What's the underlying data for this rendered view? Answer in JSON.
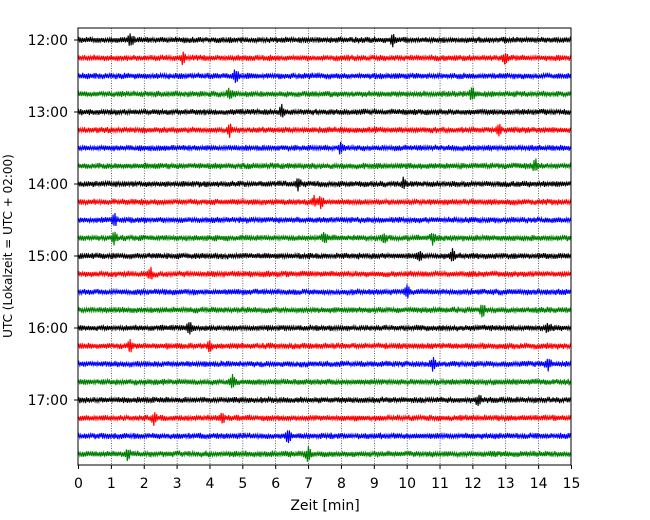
{
  "chart_data": {
    "type": "line",
    "title": "",
    "xlabel": "Zeit  [min]",
    "ylabel": "UTC (Lokalzeit = UTC + 02:00)",
    "xlim": [
      0,
      15
    ],
    "x_ticks": [
      "0",
      "1",
      "2",
      "3",
      "4",
      "5",
      "6",
      "7",
      "8",
      "9",
      "10",
      "11",
      "12",
      "13",
      "14",
      "15"
    ],
    "x_tick_values": [
      0,
      1,
      2,
      3,
      4,
      5,
      6,
      7,
      8,
      9,
      10,
      11,
      12,
      13,
      14,
      15
    ],
    "y_ticks": [
      "12:00",
      "13:00",
      "14:00",
      "15:00",
      "16:00",
      "17:00"
    ],
    "vertical_grid": "dotted at every minute",
    "trace_interval_minutes": 15,
    "trace_color_cycle": [
      "#000000",
      "#ff0000",
      "#0000ff",
      "#008000"
    ],
    "traces": [
      {
        "start": "12:00",
        "color": "#000000",
        "events_min": [
          1.6,
          9.6
        ]
      },
      {
        "start": "12:15",
        "color": "#ff0000",
        "events_min": [
          3.2,
          13.0
        ]
      },
      {
        "start": "12:30",
        "color": "#0000ff",
        "events_min": [
          4.8
        ]
      },
      {
        "start": "12:45",
        "color": "#008000",
        "events_min": [
          4.6,
          12.0
        ]
      },
      {
        "start": "13:00",
        "color": "#000000",
        "events_min": [
          6.2
        ]
      },
      {
        "start": "13:15",
        "color": "#ff0000",
        "events_min": [
          4.6,
          12.8
        ]
      },
      {
        "start": "13:30",
        "color": "#0000ff",
        "events_min": [
          8.0
        ]
      },
      {
        "start": "13:45",
        "color": "#008000",
        "events_min": [
          13.9
        ]
      },
      {
        "start": "14:00",
        "color": "#000000",
        "events_min": [
          6.7,
          9.9
        ]
      },
      {
        "start": "14:15",
        "color": "#ff0000",
        "events_min": [
          7.2,
          7.4
        ]
      },
      {
        "start": "14:30",
        "color": "#0000ff",
        "events_min": [
          1.1
        ]
      },
      {
        "start": "14:45",
        "color": "#008000",
        "events_min": [
          1.1,
          7.5,
          9.3,
          10.8
        ]
      },
      {
        "start": "15:00",
        "color": "#000000",
        "events_min": [
          10.4,
          11.4
        ]
      },
      {
        "start": "15:15",
        "color": "#ff0000",
        "events_min": [
          2.2
        ]
      },
      {
        "start": "15:30",
        "color": "#0000ff",
        "events_min": [
          10.0
        ]
      },
      {
        "start": "15:45",
        "color": "#008000",
        "events_min": [
          12.3
        ]
      },
      {
        "start": "16:00",
        "color": "#000000",
        "events_min": [
          3.4,
          14.3
        ]
      },
      {
        "start": "16:15",
        "color": "#ff0000",
        "events_min": [
          1.6,
          4.0
        ]
      },
      {
        "start": "16:30",
        "color": "#0000ff",
        "events_min": [
          10.8,
          14.3
        ]
      },
      {
        "start": "16:45",
        "color": "#008000",
        "events_min": [
          4.7
        ]
      },
      {
        "start": "17:00",
        "color": "#000000",
        "events_min": [
          12.2
        ]
      },
      {
        "start": "17:15",
        "color": "#ff0000",
        "events_min": [
          2.3,
          4.4
        ]
      },
      {
        "start": "17:30",
        "color": "#0000ff",
        "events_min": [
          6.4
        ]
      },
      {
        "start": "17:45",
        "color": "#008000",
        "events_min": [
          1.5,
          7.0
        ]
      }
    ]
  }
}
